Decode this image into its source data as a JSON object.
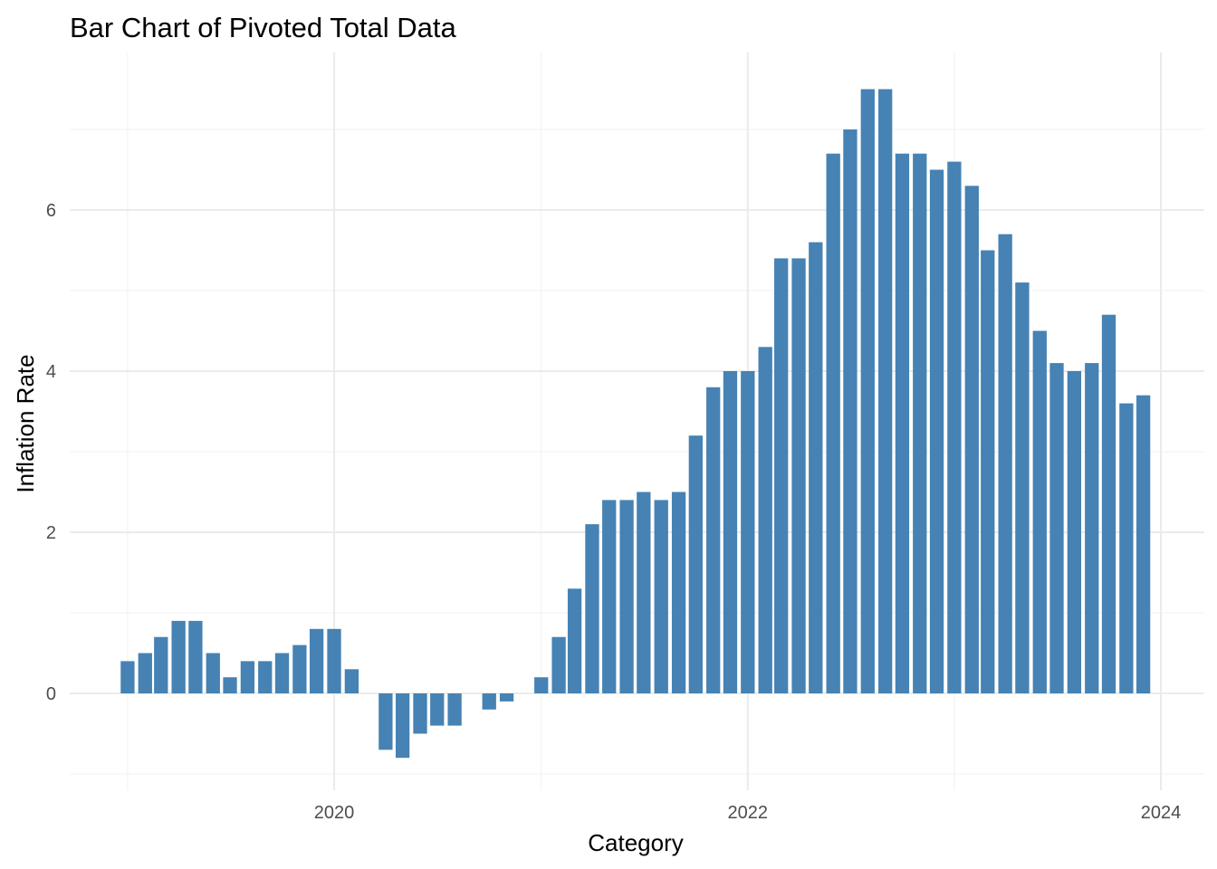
{
  "chart_data": {
    "type": "bar",
    "title": "Bar Chart of Pivoted Total Data",
    "xlabel": "Category",
    "ylabel": "Inflation Rate",
    "x_axis_type": "date",
    "x": [
      "2019-01",
      "2019-02",
      "2019-03",
      "2019-04",
      "2019-05",
      "2019-06",
      "2019-07",
      "2019-08",
      "2019-09",
      "2019-10",
      "2019-11",
      "2019-12",
      "2020-01",
      "2020-02",
      "2020-03",
      "2020-04",
      "2020-05",
      "2020-06",
      "2020-07",
      "2020-08",
      "2020-09",
      "2020-10",
      "2020-11",
      "2020-12",
      "2021-01",
      "2021-02",
      "2021-03",
      "2021-04",
      "2021-05",
      "2021-06",
      "2021-07",
      "2021-08",
      "2021-09",
      "2021-10",
      "2021-11",
      "2021-12",
      "2022-01",
      "2022-02",
      "2022-03",
      "2022-04",
      "2022-05",
      "2022-06",
      "2022-07",
      "2022-08",
      "2022-09",
      "2022-10",
      "2022-11",
      "2022-12",
      "2023-01",
      "2023-02",
      "2023-03",
      "2023-04",
      "2023-05",
      "2023-06",
      "2023-07",
      "2023-08",
      "2023-09",
      "2023-10",
      "2023-11",
      "2023-12"
    ],
    "values": [
      0.4,
      0.5,
      0.7,
      0.9,
      0.9,
      0.5,
      0.2,
      0.4,
      0.4,
      0.5,
      0.6,
      0.8,
      0.8,
      0.3,
      0,
      -0.7,
      -0.8,
      -0.5,
      -0.4,
      -0.4,
      0,
      -0.2,
      -0.1,
      0,
      0.2,
      0.7,
      1.3,
      2.1,
      2.4,
      2.4,
      2.5,
      2.4,
      2.5,
      3.2,
      3.8,
      4.0,
      4.0,
      4.3,
      5.4,
      5.4,
      5.6,
      6.7,
      7.0,
      7.5,
      7.5,
      6.7,
      6.7,
      6.5,
      6.6,
      6.3,
      5.5,
      5.7,
      5.1,
      4.5,
      4.1,
      4.0,
      4.1,
      4.7,
      3.6,
      3.7
    ],
    "x_ticks": [
      "2020",
      "2022",
      "2024"
    ],
    "y_ticks": [
      "0",
      "2",
      "4",
      "6"
    ],
    "ylim": [
      -1,
      7.5
    ],
    "bar_color": "#4682B4",
    "grid": true,
    "legend": "none"
  }
}
